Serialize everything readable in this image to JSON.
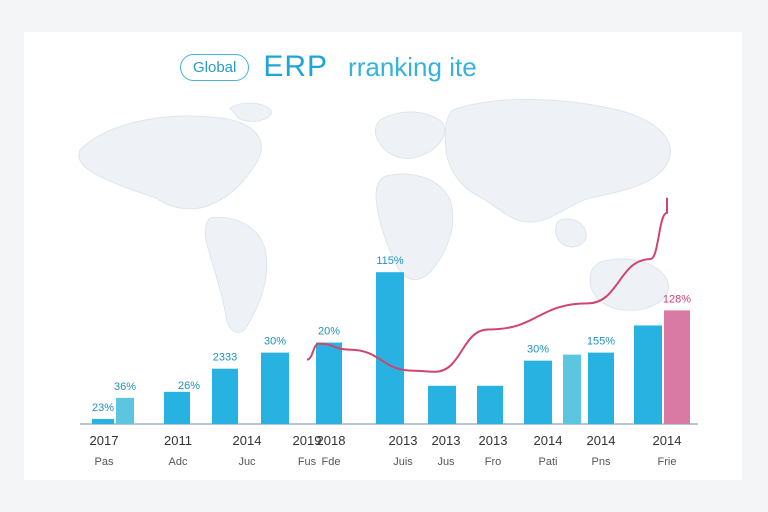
{
  "header": {
    "badge": "Global",
    "title": "ERP",
    "subtitle": "rranking ite"
  },
  "chart_data": {
    "type": "bar",
    "title": "Global ERP rranking ite",
    "categories": [
      "2017",
      "2011",
      "2014",
      "2019",
      "2018",
      "2013",
      "2013",
      "2013",
      "2014",
      "2014",
      "2014"
    ],
    "sublabels": [
      "Pas",
      "Adc",
      "Juc",
      "Fus",
      "Fde",
      "Juis",
      "Jus",
      "Fro",
      "Pati",
      "Pns",
      "Frie"
    ],
    "series": [
      {
        "name": "left",
        "values": [
          5,
          32,
          55,
          71,
          81,
          151,
          38,
          38,
          63,
          71,
          98
        ],
        "labels": [
          "23%",
          "",
          "2333",
          "30%",
          "20%",
          "115%",
          "",
          "",
          "30%",
          "155%",
          ""
        ],
        "color": "#28b2e2"
      },
      {
        "name": "right",
        "values": [
          26,
          null,
          null,
          null,
          null,
          null,
          null,
          null,
          69,
          null,
          113
        ],
        "labels": [
          "36%",
          "",
          "",
          "",
          "",
          "",
          "",
          "",
          "",
          "",
          "128%"
        ],
        "color": "#5cc5e0",
        "highlight_color": "#d97aa5"
      }
    ],
    "extra_labels": [
      {
        "category_index": 1,
        "text": "26%",
        "value": 27
      }
    ],
    "trend_line": {
      "color": "#d0446e",
      "values": [
        null,
        null,
        null,
        62,
        81,
        null,
        55,
        null,
        null,
        null,
        null
      ],
      "points": [
        [
          3.0,
          64
        ],
        [
          3.5,
          80
        ],
        [
          4.25,
          74
        ],
        [
          5.25,
          53
        ],
        [
          5.75,
          52
        ],
        [
          6.9,
          94
        ],
        [
          8.75,
          120
        ],
        [
          9.75,
          164
        ],
        [
          10.4,
          210
        ],
        [
          11.15,
          225
        ]
      ]
    },
    "ylim": [
      0,
      185
    ],
    "xlabel": "",
    "ylabel": "",
    "grid": false,
    "legend": "none",
    "colors": {
      "baseline": "#9fb4c8",
      "label_text": "#1f91bf",
      "axis_text": "#333333"
    }
  }
}
